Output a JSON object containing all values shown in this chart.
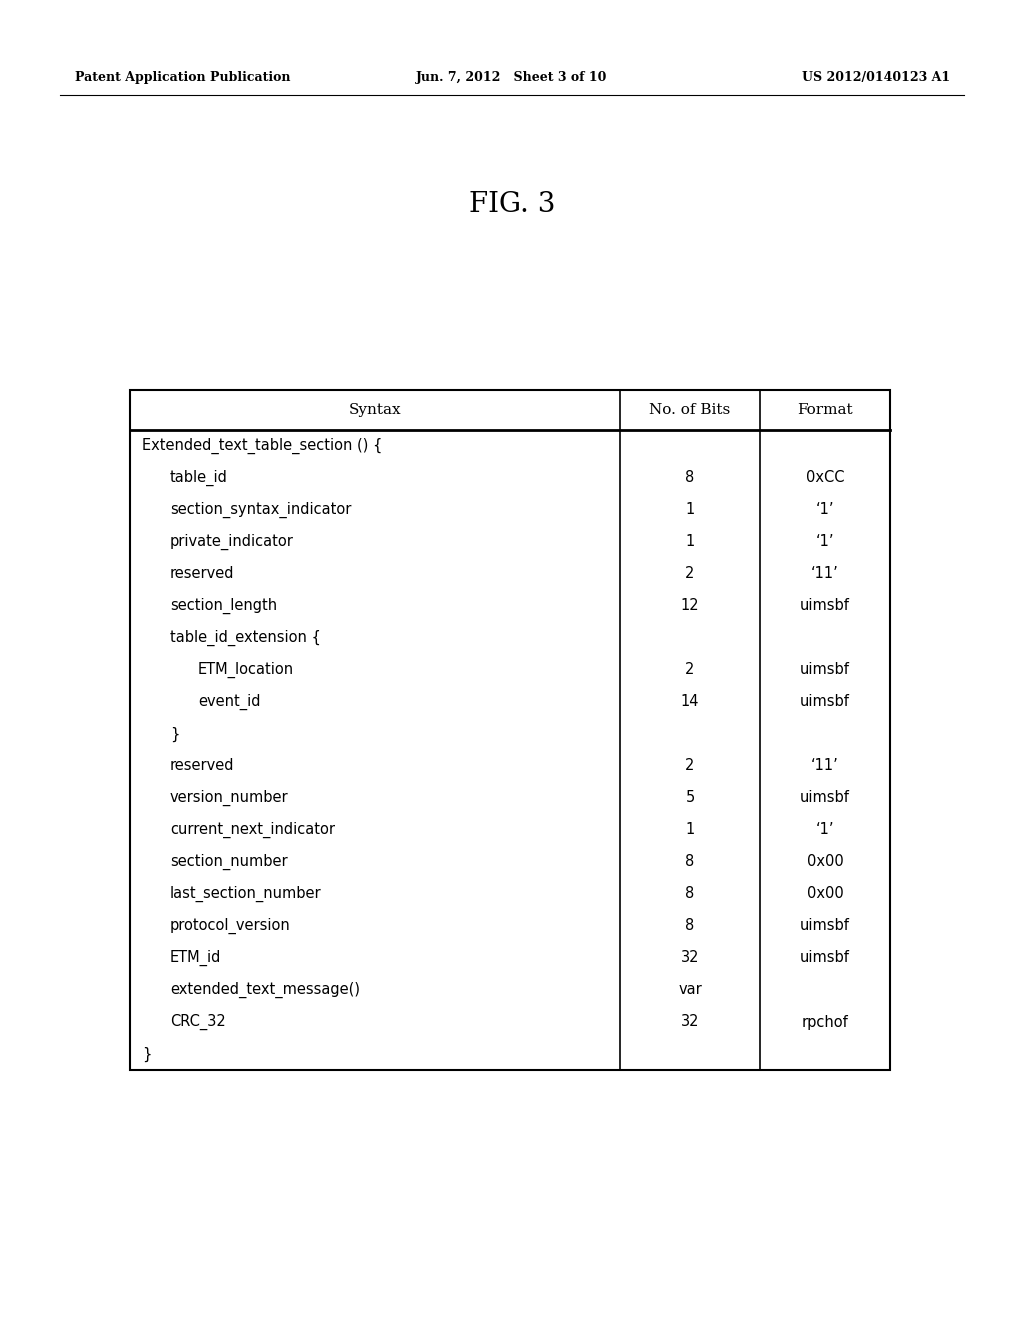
{
  "header_left": "Patent Application Publication",
  "header_center": "Jun. 7, 2012   Sheet 3 of 10",
  "header_right": "US 2012/0140123 A1",
  "figure_title": "FIG. 3",
  "table": {
    "col_headers": [
      "Syntax",
      "No. of Bits",
      "Format"
    ],
    "rows": [
      {
        "syntax": "Extended_text_table_section () {",
        "bits": "",
        "format": "",
        "indent": 0
      },
      {
        "syntax": "table_id",
        "bits": "8",
        "format": "0xCC",
        "indent": 1
      },
      {
        "syntax": "section_syntax_indicator",
        "bits": "1",
        "format": "‘1’",
        "indent": 1
      },
      {
        "syntax": "private_indicator",
        "bits": "1",
        "format": "‘1’",
        "indent": 1
      },
      {
        "syntax": "reserved",
        "bits": "2",
        "format": "‘11’",
        "indent": 1
      },
      {
        "syntax": "section_length",
        "bits": "12",
        "format": "uimsbf",
        "indent": 1
      },
      {
        "syntax": "table_id_extension {",
        "bits": "",
        "format": "",
        "indent": 1
      },
      {
        "syntax": "ETM_location",
        "bits": "2",
        "format": "uimsbf",
        "indent": 2
      },
      {
        "syntax": "event_id",
        "bits": "14",
        "format": "uimsbf",
        "indent": 2
      },
      {
        "syntax": "}",
        "bits": "",
        "format": "",
        "indent": 1
      },
      {
        "syntax": "reserved",
        "bits": "2",
        "format": "‘11’",
        "indent": 1
      },
      {
        "syntax": "version_number",
        "bits": "5",
        "format": "uimsbf",
        "indent": 1
      },
      {
        "syntax": "current_next_indicator",
        "bits": "1",
        "format": "‘1’",
        "indent": 1
      },
      {
        "syntax": "section_number",
        "bits": "8",
        "format": "0x00",
        "indent": 1
      },
      {
        "syntax": "last_section_number",
        "bits": "8",
        "format": "0x00",
        "indent": 1
      },
      {
        "syntax": "protocol_version",
        "bits": "8",
        "format": "uimsbf",
        "indent": 1
      },
      {
        "syntax": "ETM_id",
        "bits": "32",
        "format": "uimsbf",
        "indent": 1
      },
      {
        "syntax": "extended_text_message()",
        "bits": "var",
        "format": "",
        "indent": 1
      },
      {
        "syntax": "CRC_32",
        "bits": "32",
        "format": "rpchof",
        "indent": 1
      },
      {
        "syntax": "}",
        "bits": "",
        "format": "",
        "indent": 0
      }
    ]
  },
  "bg_color": "#ffffff",
  "text_color": "#000000",
  "font_size_header": 9,
  "font_size_title": 20,
  "font_size_table": 10.5,
  "font_size_col_header": 11
}
